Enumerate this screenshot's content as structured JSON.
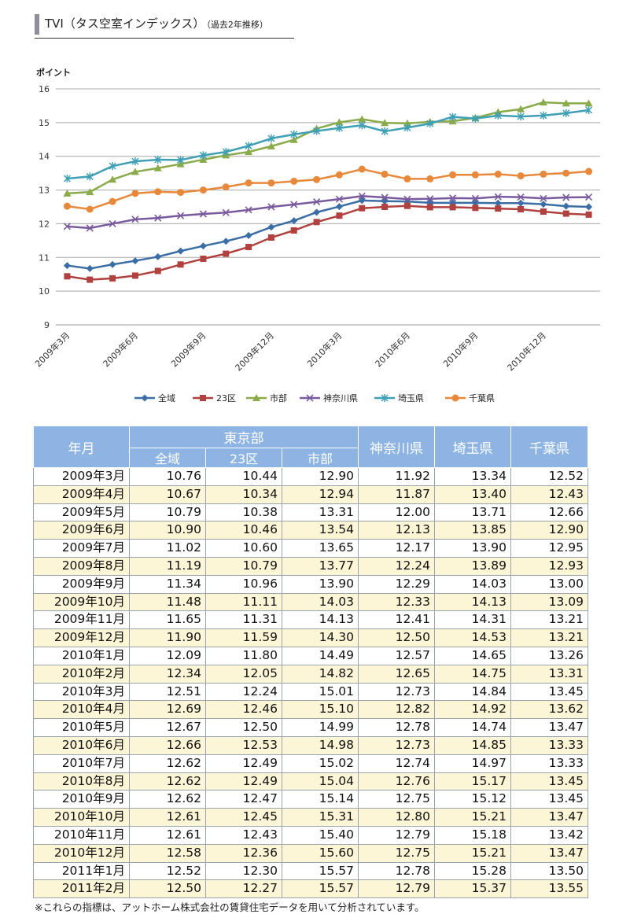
{
  "header": {
    "title": "TVI（タス空室インデックス）",
    "subtitle": "（過去2年推移）"
  },
  "chart_data": {
    "type": "line",
    "ylabel": "ポイント",
    "ylim": [
      9,
      16
    ],
    "yticks": [
      "9",
      "10",
      "11",
      "12",
      "13",
      "14",
      "15",
      "16"
    ],
    "x": [
      "2009年3月",
      "2009年4月",
      "2009年5月",
      "2009年6月",
      "2009年7月",
      "2009年8月",
      "2009年9月",
      "2009年10月",
      "2009年11月",
      "2009年12月",
      "2010年1月",
      "2010年2月",
      "2010年3月",
      "2010年4月",
      "2010年5月",
      "2010年6月",
      "2010年7月",
      "2010年8月",
      "2010年9月",
      "2010年10月",
      "2010年11月",
      "2010年12月",
      "2011年1月",
      "2011年2月"
    ],
    "xtick_labels": [
      "2009年3月",
      "2009年6月",
      "2009年9月",
      "2009年12月",
      "2010年3月",
      "2010年6月",
      "2010年9月",
      "2010年12月"
    ],
    "grid": true,
    "legend_position": "bottom",
    "series": [
      {
        "name": "全域",
        "color": "#3a6ea5",
        "marker": "diamond",
        "values": [
          10.76,
          10.67,
          10.79,
          10.9,
          11.02,
          11.19,
          11.34,
          11.48,
          11.65,
          11.9,
          12.09,
          12.34,
          12.51,
          12.69,
          12.67,
          12.66,
          12.62,
          12.62,
          12.62,
          12.61,
          12.61,
          12.58,
          12.52,
          12.5
        ]
      },
      {
        "name": "23区",
        "color": "#b0413e",
        "marker": "square",
        "values": [
          10.44,
          10.34,
          10.38,
          10.46,
          10.6,
          10.79,
          10.96,
          11.11,
          11.31,
          11.59,
          11.8,
          12.05,
          12.24,
          12.46,
          12.5,
          12.53,
          12.49,
          12.49,
          12.47,
          12.45,
          12.43,
          12.36,
          12.3,
          12.27
        ]
      },
      {
        "name": "市部",
        "color": "#8aab4a",
        "marker": "triangle",
        "values": [
          12.9,
          12.94,
          13.31,
          13.54,
          13.65,
          13.77,
          13.9,
          14.03,
          14.13,
          14.3,
          14.49,
          14.82,
          15.01,
          15.1,
          14.99,
          14.98,
          15.02,
          15.04,
          15.14,
          15.31,
          15.4,
          15.6,
          15.57,
          15.57
        ]
      },
      {
        "name": "神奈川県",
        "color": "#7a5a9e",
        "marker": "x",
        "values": [
          11.92,
          11.87,
          12.0,
          12.13,
          12.17,
          12.24,
          12.29,
          12.33,
          12.41,
          12.5,
          12.57,
          12.65,
          12.73,
          12.82,
          12.78,
          12.73,
          12.74,
          12.76,
          12.75,
          12.8,
          12.79,
          12.75,
          12.78,
          12.79
        ]
      },
      {
        "name": "埼玉県",
        "color": "#3fa0b5",
        "marker": "star",
        "values": [
          13.34,
          13.4,
          13.71,
          13.85,
          13.9,
          13.89,
          14.03,
          14.13,
          14.31,
          14.53,
          14.65,
          14.75,
          14.84,
          14.92,
          14.74,
          14.85,
          14.97,
          15.17,
          15.12,
          15.21,
          15.18,
          15.21,
          15.28,
          15.37
        ]
      },
      {
        "name": "千葉県",
        "color": "#e8883a",
        "marker": "circle",
        "values": [
          12.52,
          12.43,
          12.66,
          12.9,
          12.95,
          12.93,
          13.0,
          13.09,
          13.21,
          13.21,
          13.26,
          13.31,
          13.45,
          13.62,
          13.47,
          13.33,
          13.33,
          13.45,
          13.45,
          13.47,
          13.42,
          13.47,
          13.5,
          13.55
        ]
      }
    ]
  },
  "table": {
    "col_month": "年月",
    "group_tokyo": "東京部",
    "col_all": "全域",
    "col_23": "23区",
    "col_city": "市部",
    "col_kanagawa": "神奈川県",
    "col_saitama": "埼玉県",
    "col_chiba": "千葉県",
    "rows": [
      [
        "2009年3月",
        "10.76",
        "10.44",
        "12.90",
        "11.92",
        "13.34",
        "12.52"
      ],
      [
        "2009年4月",
        "10.67",
        "10.34",
        "12.94",
        "11.87",
        "13.40",
        "12.43"
      ],
      [
        "2009年5月",
        "10.79",
        "10.38",
        "13.31",
        "12.00",
        "13.71",
        "12.66"
      ],
      [
        "2009年6月",
        "10.90",
        "10.46",
        "13.54",
        "12.13",
        "13.85",
        "12.90"
      ],
      [
        "2009年7月",
        "11.02",
        "10.60",
        "13.65",
        "12.17",
        "13.90",
        "12.95"
      ],
      [
        "2009年8月",
        "11.19",
        "10.79",
        "13.77",
        "12.24",
        "13.89",
        "12.93"
      ],
      [
        "2009年9月",
        "11.34",
        "10.96",
        "13.90",
        "12.29",
        "14.03",
        "13.00"
      ],
      [
        "2009年10月",
        "11.48",
        "11.11",
        "14.03",
        "12.33",
        "14.13",
        "13.09"
      ],
      [
        "2009年11月",
        "11.65",
        "11.31",
        "14.13",
        "12.41",
        "14.31",
        "13.21"
      ],
      [
        "2009年12月",
        "11.90",
        "11.59",
        "14.30",
        "12.50",
        "14.53",
        "13.21"
      ],
      [
        "2010年1月",
        "12.09",
        "11.80",
        "14.49",
        "12.57",
        "14.65",
        "13.26"
      ],
      [
        "2010年2月",
        "12.34",
        "12.05",
        "14.82",
        "12.65",
        "14.75",
        "13.31"
      ],
      [
        "2010年3月",
        "12.51",
        "12.24",
        "15.01",
        "12.73",
        "14.84",
        "13.45"
      ],
      [
        "2010年4月",
        "12.69",
        "12.46",
        "15.10",
        "12.82",
        "14.92",
        "13.62"
      ],
      [
        "2010年5月",
        "12.67",
        "12.50",
        "14.99",
        "12.78",
        "14.74",
        "13.47"
      ],
      [
        "2010年6月",
        "12.66",
        "12.53",
        "14.98",
        "12.73",
        "14.85",
        "13.33"
      ],
      [
        "2010年7月",
        "12.62",
        "12.49",
        "15.02",
        "12.74",
        "14.97",
        "13.33"
      ],
      [
        "2010年8月",
        "12.62",
        "12.49",
        "15.04",
        "12.76",
        "15.17",
        "13.45"
      ],
      [
        "2010年9月",
        "12.62",
        "12.47",
        "15.14",
        "12.75",
        "15.12",
        "13.45"
      ],
      [
        "2010年10月",
        "12.61",
        "12.45",
        "15.31",
        "12.80",
        "15.21",
        "13.47"
      ],
      [
        "2010年11月",
        "12.61",
        "12.43",
        "15.40",
        "12.79",
        "15.18",
        "13.42"
      ],
      [
        "2010年12月",
        "12.58",
        "12.36",
        "15.60",
        "12.75",
        "15.21",
        "13.47"
      ],
      [
        "2011年1月",
        "12.52",
        "12.30",
        "15.57",
        "12.78",
        "15.28",
        "13.50"
      ],
      [
        "2011年2月",
        "12.50",
        "12.27",
        "15.57",
        "12.79",
        "15.37",
        "13.55"
      ]
    ]
  },
  "footnote": "※これらの指標は、アットホーム株式会社の賃貸住宅データを用いて分析されています。"
}
